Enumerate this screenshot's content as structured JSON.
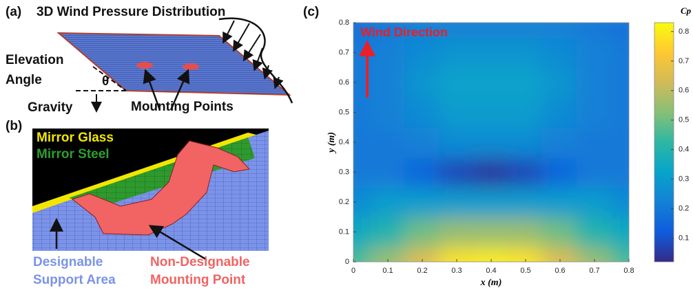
{
  "panels": {
    "a": {
      "label": "(a)",
      "title": "3D Wind Pressure Distribution",
      "elevation_1": "Elevation",
      "elevation_2": "Angle",
      "theta": "θ",
      "gravity": "Gravity",
      "mounting": "Mounting Points"
    },
    "b": {
      "label": "(b)",
      "glass": "Mirror Glass",
      "steel": "Mirror Steel",
      "support_1": "Designable",
      "support_2": "Support Area",
      "mount_1": "Non-Designable",
      "mount_2": "Mounting Point"
    }
  },
  "chart_data": {
    "type": "heatmap",
    "panel_label": "(c)",
    "annotation": "Wind Direction",
    "xlabel": "x (m)",
    "ylabel": "y (m)",
    "colorbar_label": "Cp",
    "x": [
      0,
      0.1,
      0.2,
      0.3,
      0.4,
      0.5,
      0.6,
      0.7,
      0.8
    ],
    "y": [
      0,
      0.1,
      0.2,
      0.3,
      0.4,
      0.5,
      0.6,
      0.7,
      0.8
    ],
    "z": [
      [
        0.45,
        0.55,
        0.65,
        0.78,
        0.8,
        0.78,
        0.65,
        0.55,
        0.45
      ],
      [
        0.35,
        0.4,
        0.5,
        0.55,
        0.55,
        0.55,
        0.5,
        0.4,
        0.35
      ],
      [
        0.25,
        0.3,
        0.3,
        0.3,
        0.3,
        0.3,
        0.3,
        0.3,
        0.25
      ],
      [
        0.2,
        0.2,
        0.15,
        0.08,
        0.05,
        0.08,
        0.15,
        0.2,
        0.2
      ],
      [
        0.2,
        0.2,
        0.22,
        0.25,
        0.25,
        0.25,
        0.22,
        0.2,
        0.2
      ],
      [
        0.2,
        0.22,
        0.25,
        0.3,
        0.3,
        0.3,
        0.25,
        0.22,
        0.2
      ],
      [
        0.2,
        0.22,
        0.28,
        0.32,
        0.32,
        0.32,
        0.28,
        0.22,
        0.2
      ],
      [
        0.2,
        0.22,
        0.25,
        0.28,
        0.28,
        0.28,
        0.25,
        0.22,
        0.2
      ],
      [
        0.18,
        0.2,
        0.22,
        0.22,
        0.22,
        0.22,
        0.22,
        0.2,
        0.18
      ]
    ],
    "xlim": [
      0,
      0.8
    ],
    "ylim": [
      0,
      0.8
    ],
    "xticks": [
      0,
      0.1,
      0.2,
      0.3,
      0.4,
      0.5,
      0.6,
      0.7,
      0.8
    ],
    "yticks": [
      0,
      0.1,
      0.2,
      0.3,
      0.4,
      0.5,
      0.6,
      0.7,
      0.8
    ],
    "clim": [
      0.02,
      0.83
    ],
    "cticks": [
      0.1,
      0.2,
      0.3,
      0.4,
      0.5,
      0.6,
      0.7,
      0.8
    ],
    "colormap": [
      "#352a87",
      "#0f5cdd",
      "#1481d6",
      "#06a4ca",
      "#2eb7a4",
      "#87bf77",
      "#d1bb59",
      "#fec832",
      "#f9fb0e"
    ],
    "annotation_color": "#e8202a"
  }
}
